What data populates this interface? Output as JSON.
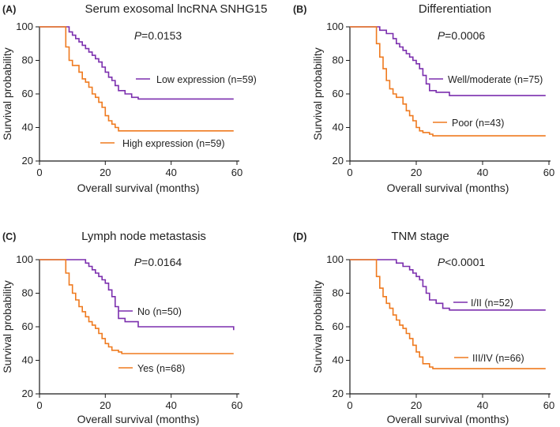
{
  "colors": {
    "purple": "#7b2fae",
    "orange": "#ef7a1f",
    "axis": "#1a1a1a"
  },
  "chart_data": [
    {
      "type": "line",
      "panel_label": "(A)",
      "title": "Serum exosomal lncRNA SNHG15",
      "pvalue": {
        "prefix": "P",
        "text": "=0.0153"
      },
      "xlabel": "Overall survival (months)",
      "ylabel": "Survival probability",
      "xlim": [
        0,
        60
      ],
      "ylim": [
        20,
        100
      ],
      "xticks": [
        "0",
        "20",
        "40",
        "60"
      ],
      "yticks": [
        "20",
        "40",
        "60",
        "80",
        "100"
      ],
      "series": [
        {
          "name": "Low expression (n=59)",
          "color": "#7b2fae",
          "x": [
            0,
            8,
            9,
            10,
            11,
            12,
            13,
            14,
            15,
            16,
            17,
            18,
            19,
            20,
            21,
            22,
            23,
            24,
            26,
            28,
            30,
            59
          ],
          "y": [
            100,
            100,
            97,
            95,
            93,
            91,
            89,
            87,
            85,
            83,
            81,
            79,
            76,
            73,
            70,
            68,
            65,
            62,
            60,
            58,
            57,
            57
          ]
        },
        {
          "name": "High expression (n=59)",
          "color": "#ef7a1f",
          "x": [
            0,
            7,
            8,
            9,
            10,
            12,
            13,
            14,
            15,
            16,
            17,
            18,
            19,
            20,
            21,
            22,
            23,
            24,
            59
          ],
          "y": [
            100,
            100,
            88,
            80,
            77,
            73,
            69,
            67,
            64,
            60,
            58,
            55,
            52,
            47,
            44,
            42,
            40,
            38,
            38
          ]
        }
      ]
    },
    {
      "type": "line",
      "panel_label": "(B)",
      "title": "Differentiation",
      "pvalue": {
        "prefix": "P",
        "text": "=0.0006"
      },
      "xlabel": "Overall survival (months)",
      "ylabel": "Survival probability",
      "xlim": [
        0,
        60
      ],
      "ylim": [
        20,
        100
      ],
      "xticks": [
        "0",
        "20",
        "40",
        "60"
      ],
      "yticks": [
        "20",
        "40",
        "60",
        "80",
        "100"
      ],
      "series": [
        {
          "name": "Well/moderate (n=75)",
          "color": "#7b2fae",
          "x": [
            0,
            8,
            9,
            11,
            13,
            14,
            15,
            16,
            17,
            18,
            19,
            20,
            21,
            22,
            23,
            24,
            26,
            30,
            59
          ],
          "y": [
            100,
            100,
            98,
            96,
            93,
            90,
            88,
            86,
            84,
            82,
            80,
            78,
            75,
            71,
            66,
            62,
            61,
            59,
            59
          ]
        },
        {
          "name": "Poor (n=43)",
          "color": "#ef7a1f",
          "x": [
            0,
            7,
            8,
            9,
            10,
            11,
            12,
            13,
            14,
            16,
            17,
            18,
            19,
            20,
            21,
            22,
            24,
            25,
            59
          ],
          "y": [
            100,
            100,
            90,
            82,
            75,
            68,
            63,
            60,
            58,
            54,
            50,
            47,
            44,
            40,
            38,
            37,
            36,
            35,
            35
          ]
        }
      ]
    },
    {
      "type": "line",
      "panel_label": "(C)",
      "title": "Lymph node metastasis",
      "pvalue": {
        "prefix": "P",
        "text": "=0.0164"
      },
      "xlabel": "Overall survival (months)",
      "ylabel": "Survival probability",
      "xlim": [
        0,
        60
      ],
      "ylim": [
        20,
        100
      ],
      "xticks": [
        "0",
        "20",
        "40",
        "60"
      ],
      "yticks": [
        "20",
        "40",
        "60",
        "80",
        "100"
      ],
      "series": [
        {
          "name": "No (n=50)",
          "color": "#7b2fae",
          "x": [
            0,
            12,
            14,
            15,
            16,
            17,
            18,
            19,
            20,
            21,
            22,
            23,
            24,
            26,
            30,
            59
          ],
          "y": [
            100,
            100,
            98,
            96,
            94,
            92,
            90,
            88,
            86,
            82,
            78,
            72,
            65,
            63,
            60,
            58
          ]
        },
        {
          "name": "Yes (n=68)",
          "color": "#ef7a1f",
          "x": [
            0,
            7,
            8,
            9,
            10,
            11,
            12,
            13,
            14,
            15,
            16,
            17,
            18,
            19,
            20,
            21,
            22,
            24,
            25,
            59
          ],
          "y": [
            100,
            100,
            92,
            85,
            80,
            76,
            72,
            69,
            66,
            63,
            61,
            59,
            56,
            53,
            50,
            48,
            46,
            45,
            44,
            44
          ]
        }
      ]
    },
    {
      "type": "line",
      "panel_label": "(D)",
      "title": "TNM stage",
      "pvalue": {
        "prefix": "P",
        "text": "<0.0001"
      },
      "xlabel": "Overall survival (months)",
      "ylabel": "Survival probability",
      "xlim": [
        0,
        60
      ],
      "ylim": [
        20,
        100
      ],
      "xticks": [
        "0",
        "20",
        "40",
        "60"
      ],
      "yticks": [
        "20",
        "40",
        "60",
        "80",
        "100"
      ],
      "series": [
        {
          "name": "I/II (n=52)",
          "color": "#7b2fae",
          "x": [
            0,
            12,
            14,
            16,
            18,
            19,
            20,
            21,
            22,
            23,
            24,
            26,
            28,
            30,
            59
          ],
          "y": [
            100,
            100,
            98,
            96,
            94,
            92,
            90,
            88,
            84,
            80,
            76,
            74,
            71,
            70,
            70
          ]
        },
        {
          "name": "III/IV (n=66)",
          "color": "#ef7a1f",
          "x": [
            0,
            7,
            8,
            9,
            10,
            11,
            12,
            13,
            14,
            15,
            16,
            17,
            18,
            19,
            20,
            21,
            22,
            24,
            25,
            59
          ],
          "y": [
            100,
            100,
            90,
            83,
            78,
            74,
            71,
            67,
            64,
            61,
            59,
            56,
            53,
            49,
            45,
            42,
            38,
            36,
            35,
            35
          ]
        }
      ]
    }
  ]
}
